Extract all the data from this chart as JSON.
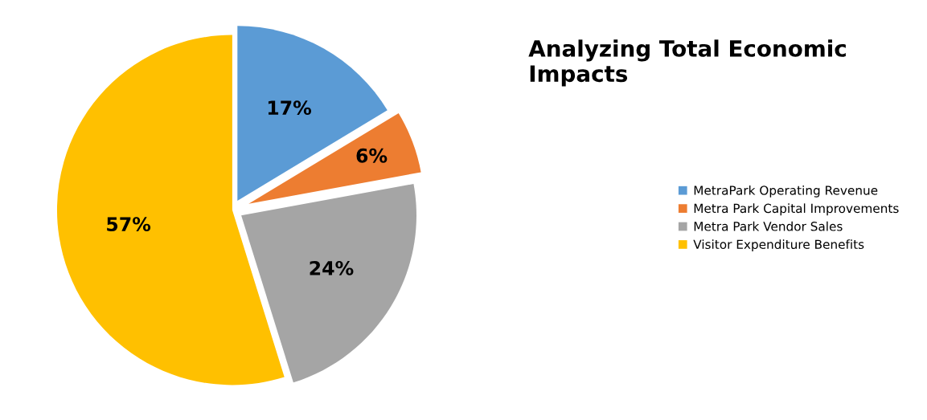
{
  "chart_data": {
    "type": "pie",
    "title": "Analyzing Total Economic Impacts",
    "categories": [
      "MetraPark Operating Revenue",
      "Metra Park Capital Improvements",
      "Metra Park Vendor Sales",
      "Visitor Expenditure Benefits"
    ],
    "values": [
      17,
      6,
      24,
      57
    ],
    "colors": [
      "#5b9bd5",
      "#ed7d31",
      "#a5a5a5",
      "#ffc000"
    ],
    "value_labels": [
      "17%",
      "6%",
      "24%",
      "57%"
    ],
    "legend": "right"
  }
}
